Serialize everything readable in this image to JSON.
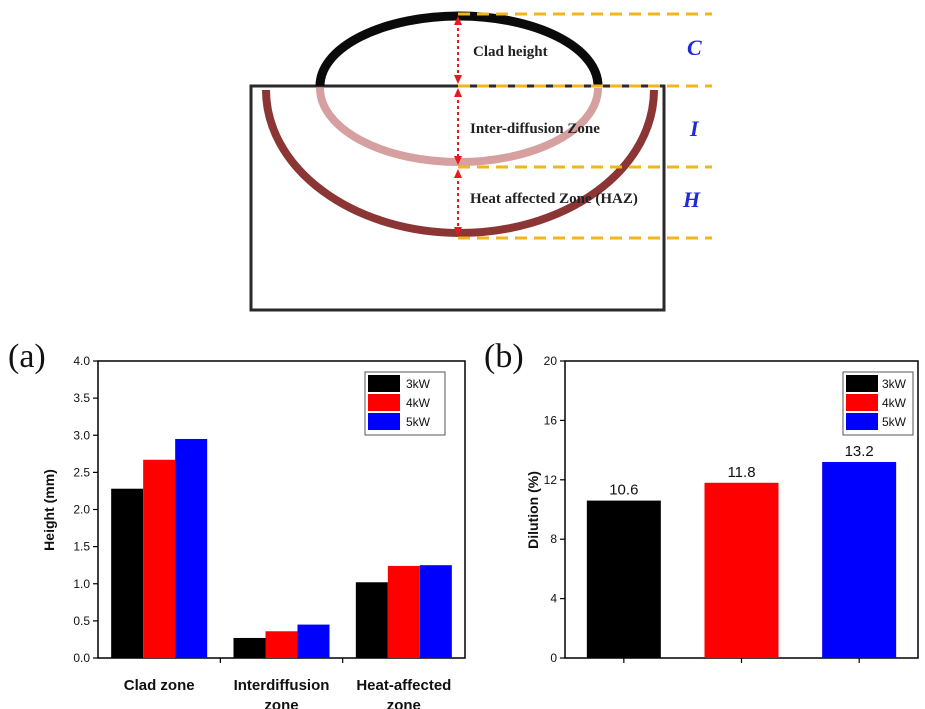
{
  "schematic": {
    "labels": {
      "clad_height": "Clad height",
      "inter_diffusion": "Inter-diffusion Zone",
      "haz": "Heat affected Zone (HAZ)",
      "c": "C",
      "i": "I",
      "h": "H"
    },
    "colors": {
      "clad_arc": "#0a0a0a",
      "inter_arc": "#d6a0a0",
      "haz_arc": "#8b3535",
      "dashed_lines": "#f2b51c",
      "arrows": "#e8191c",
      "letters": "#1f2bd6"
    }
  },
  "chart_data": [
    {
      "panel": "(a)",
      "type": "bar",
      "categories": [
        "Clad zone",
        "Interdiffusion zone",
        "Heat-affected zone"
      ],
      "category_lines": [
        [
          "Clad zone"
        ],
        [
          "Interdiffusion",
          "zone"
        ],
        [
          "Heat-affected",
          "zone"
        ]
      ],
      "series": [
        {
          "name": "3kW",
          "color": "#000000",
          "values": [
            2.28,
            0.27,
            1.02
          ]
        },
        {
          "name": "4kW",
          "color": "#ff0000",
          "values": [
            2.67,
            0.36,
            1.24
          ]
        },
        {
          "name": "5kW",
          "color": "#0000ff",
          "values": [
            2.95,
            0.45,
            1.25
          ]
        }
      ],
      "ylabel": "Height (mm)",
      "ylim": [
        0,
        4.0
      ],
      "yticks": [
        "0.0",
        "0.5",
        "1.0",
        "1.5",
        "2.0",
        "2.5",
        "3.0",
        "3.5",
        "4.0"
      ],
      "legend_position": "top-right",
      "grid": false
    },
    {
      "panel": "(b)",
      "type": "bar",
      "categories": [
        "3kW",
        "4kW",
        "5kW"
      ],
      "values": [
        10.6,
        11.8,
        13.2
      ],
      "data_labels": [
        "10.6",
        "11.8",
        "13.2"
      ],
      "colors": [
        "#000000",
        "#ff0000",
        "#0000ff"
      ],
      "legend": [
        "3kW",
        "4kW",
        "5kW"
      ],
      "ylabel": "Dilution (%)",
      "ylim": [
        0,
        20
      ],
      "yticks": [
        "0",
        "4",
        "8",
        "12",
        "16",
        "20"
      ],
      "legend_position": "top-right",
      "grid": false
    }
  ]
}
